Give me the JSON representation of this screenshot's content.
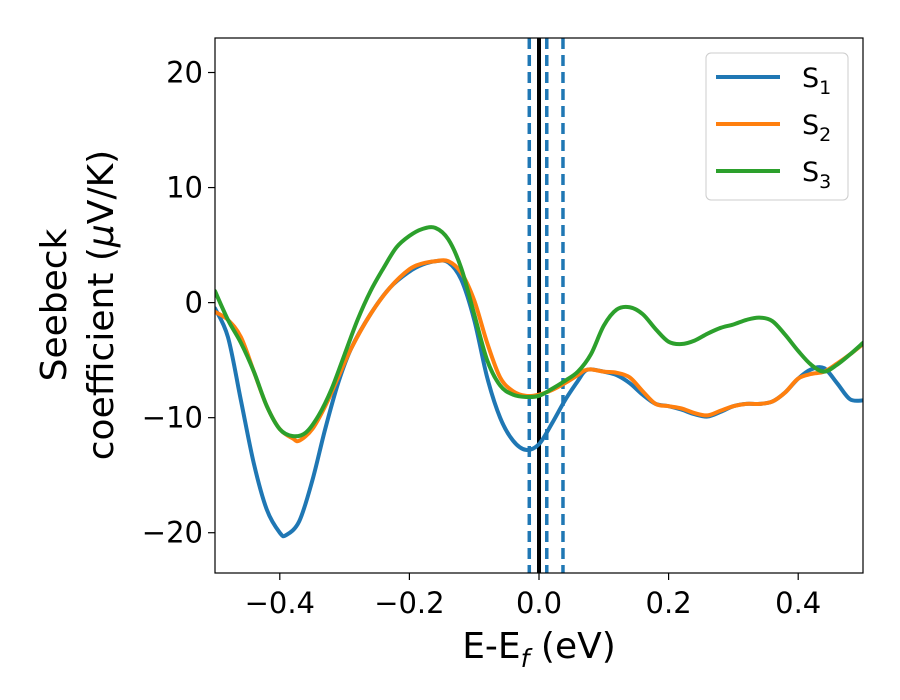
{
  "chart_data": {
    "type": "line",
    "xlabel": "E-E",
    "xlabel_sub": "f",
    "xlabel_unit": " (eV)",
    "ylabel_line1": "Seebeck",
    "ylabel_line2": "coefficient  (",
    "ylabel_mu": "μ",
    "ylabel_unit": "V/K)",
    "xlim": [
      -0.5,
      0.5
    ],
    "ylim": [
      -23.5,
      23
    ],
    "x_ticks": [
      -0.4,
      -0.2,
      0.0,
      0.2,
      0.4
    ],
    "x_tick_labels": [
      "−0.4",
      "−0.2",
      "0.0",
      "0.2",
      "0.4"
    ],
    "y_ticks": [
      -20,
      -10,
      0,
      10,
      20
    ],
    "y_tick_labels": [
      "−20",
      "−10",
      "0",
      "10",
      "20"
    ],
    "grid": false,
    "legend_position": "top-right",
    "vertical_lines": [
      {
        "x": 0.0,
        "style": "solid",
        "color": "#000000"
      },
      {
        "x": -0.015,
        "style": "dashed",
        "color": "#1f77b4"
      },
      {
        "x": 0.012,
        "style": "dashed",
        "color": "#1f77b4"
      },
      {
        "x": 0.037,
        "style": "dashed",
        "color": "#1f77b4"
      }
    ],
    "series": [
      {
        "name": "S",
        "sub": "1",
        "color": "#1f77b4",
        "x": [
          -0.5,
          -0.48,
          -0.46,
          -0.44,
          -0.42,
          -0.4,
          -0.39,
          -0.37,
          -0.35,
          -0.33,
          -0.31,
          -0.29,
          -0.26,
          -0.23,
          -0.2,
          -0.18,
          -0.16,
          -0.14,
          -0.12,
          -0.1,
          -0.08,
          -0.06,
          -0.04,
          -0.02,
          0.0,
          0.02,
          0.04,
          0.06,
          0.07,
          0.08,
          0.1,
          0.12,
          0.14,
          0.16,
          0.18,
          0.2,
          0.22,
          0.24,
          0.26,
          0.28,
          0.3,
          0.32,
          0.34,
          0.36,
          0.38,
          0.4,
          0.42,
          0.44,
          0.46,
          0.48,
          0.5
        ],
        "y": [
          -0.5,
          -3.0,
          -8.5,
          -14.0,
          -18.0,
          -20.0,
          -20.2,
          -19.0,
          -15.5,
          -11.0,
          -7.0,
          -4.0,
          -1.0,
          1.3,
          2.7,
          3.3,
          3.6,
          3.5,
          2.0,
          -1.5,
          -6.5,
          -10.0,
          -12.0,
          -12.8,
          -12.3,
          -10.5,
          -8.5,
          -6.8,
          -6.0,
          -5.8,
          -6.0,
          -6.3,
          -7.0,
          -8.0,
          -8.8,
          -9.0,
          -9.3,
          -9.7,
          -9.9,
          -9.5,
          -9.0,
          -8.8,
          -8.8,
          -8.6,
          -7.8,
          -6.6,
          -5.8,
          -5.7,
          -7.0,
          -8.4,
          -8.5
        ]
      },
      {
        "name": "S",
        "sub": "2",
        "color": "#ff7f0e",
        "x": [
          -0.5,
          -0.48,
          -0.46,
          -0.44,
          -0.42,
          -0.4,
          -0.38,
          -0.37,
          -0.35,
          -0.33,
          -0.31,
          -0.29,
          -0.26,
          -0.23,
          -0.2,
          -0.18,
          -0.16,
          -0.14,
          -0.12,
          -0.1,
          -0.08,
          -0.06,
          -0.04,
          -0.02,
          0.0,
          0.02,
          0.04,
          0.06,
          0.07,
          0.08,
          0.1,
          0.12,
          0.14,
          0.16,
          0.18,
          0.2,
          0.22,
          0.24,
          0.26,
          0.28,
          0.3,
          0.32,
          0.34,
          0.36,
          0.38,
          0.4,
          0.42,
          0.44,
          0.46,
          0.48,
          0.5
        ],
        "y": [
          -0.8,
          -1.5,
          -3.0,
          -6.0,
          -9.0,
          -11.0,
          -11.8,
          -12.0,
          -11.0,
          -9.0,
          -6.5,
          -4.0,
          -1.0,
          1.3,
          2.9,
          3.4,
          3.6,
          3.6,
          2.6,
          0.2,
          -3.5,
          -6.5,
          -7.7,
          -8.1,
          -8.0,
          -7.6,
          -7.0,
          -6.3,
          -5.9,
          -5.8,
          -6.0,
          -6.1,
          -6.5,
          -7.7,
          -8.8,
          -9.0,
          -9.2,
          -9.6,
          -9.8,
          -9.4,
          -9.0,
          -8.8,
          -8.8,
          -8.6,
          -7.8,
          -6.6,
          -6.2,
          -6.0,
          -5.3,
          -4.5,
          -3.6
        ]
      },
      {
        "name": "S",
        "sub": "3",
        "color": "#2ca02c",
        "x": [
          -0.5,
          -0.48,
          -0.46,
          -0.44,
          -0.42,
          -0.4,
          -0.38,
          -0.36,
          -0.34,
          -0.32,
          -0.3,
          -0.28,
          -0.26,
          -0.24,
          -0.22,
          -0.2,
          -0.18,
          -0.16,
          -0.14,
          -0.12,
          -0.1,
          -0.08,
          -0.06,
          -0.04,
          -0.02,
          0.0,
          0.02,
          0.04,
          0.06,
          0.08,
          0.1,
          0.12,
          0.14,
          0.16,
          0.18,
          0.2,
          0.22,
          0.24,
          0.26,
          0.28,
          0.3,
          0.32,
          0.34,
          0.36,
          0.38,
          0.4,
          0.42,
          0.44,
          0.46,
          0.48,
          0.5
        ],
        "y": [
          1.0,
          -1.5,
          -3.5,
          -6.0,
          -9.0,
          -11.0,
          -11.6,
          -11.3,
          -9.8,
          -7.5,
          -4.5,
          -1.5,
          1.0,
          3.0,
          4.8,
          5.8,
          6.4,
          6.5,
          5.5,
          3.0,
          -1.0,
          -5.0,
          -7.2,
          -8.0,
          -8.2,
          -8.1,
          -7.5,
          -6.8,
          -6.0,
          -4.5,
          -2.0,
          -0.6,
          -0.4,
          -1.0,
          -2.3,
          -3.4,
          -3.6,
          -3.3,
          -2.7,
          -2.2,
          -1.9,
          -1.5,
          -1.3,
          -1.6,
          -2.8,
          -4.2,
          -5.4,
          -6.0,
          -5.4,
          -4.5,
          -3.5
        ]
      }
    ]
  }
}
